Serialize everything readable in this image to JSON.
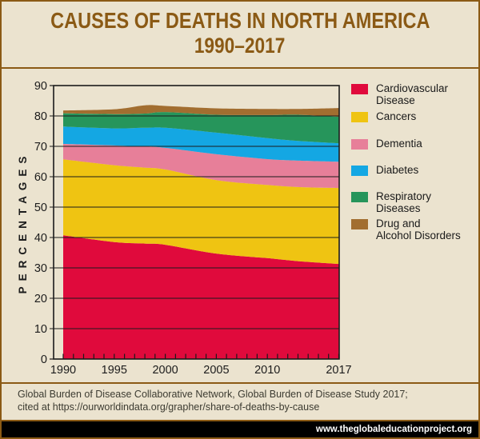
{
  "title": {
    "line1": "CAUSES OF DEATHS IN NORTH AMERICA",
    "line2": "1990–2017"
  },
  "chart_data": {
    "type": "area",
    "stacked": true,
    "title": "Causes of Deaths in North America 1990–2017",
    "x": [
      1990,
      1995,
      1998,
      2000,
      2005,
      2010,
      2013,
      2017
    ],
    "series": [
      {
        "name": "Cardiovascular Disease",
        "color": "#E00A3C",
        "values": [
          40.7,
          38.5,
          38.0,
          37.6,
          34.7,
          33.2,
          32.2,
          31.3
        ]
      },
      {
        "name": "Cancers",
        "color": "#EFC412",
        "values": [
          25.0,
          25.3,
          25.0,
          24.8,
          24.2,
          24.1,
          24.4,
          25.0
        ]
      },
      {
        "name": "Dementia",
        "color": "#E77F99",
        "values": [
          5.1,
          6.5,
          6.9,
          7.1,
          8.5,
          8.5,
          8.7,
          8.6
        ]
      },
      {
        "name": "Diabetes",
        "color": "#14A7E3",
        "values": [
          5.7,
          5.6,
          6.2,
          6.6,
          7.1,
          6.9,
          6.5,
          6.1
        ]
      },
      {
        "name": "Respiratory Diseases",
        "color": "#26955B",
        "values": [
          4.4,
          4.7,
          4.7,
          5.2,
          5.9,
          7.6,
          8.6,
          8.7
        ]
      },
      {
        "name": "Drug and Alcohol Disorders",
        "color": "#A26E30",
        "values": [
          0.9,
          1.6,
          2.7,
          2.0,
          2.1,
          2.0,
          1.9,
          2.9
        ]
      }
    ],
    "xlabel": "",
    "ylabel": "PERCENTAGES",
    "xlim": [
      1990,
      2017
    ],
    "ylim": [
      0,
      90
    ],
    "yticks": [
      0,
      10,
      20,
      30,
      40,
      50,
      60,
      70,
      80,
      90
    ],
    "xtick_labels": [
      1990,
      1995,
      2000,
      2005,
      2010,
      2017
    ],
    "minor_xticks_every_year": true,
    "grid": true,
    "legend_position": "right"
  },
  "legend": {
    "items": [
      {
        "label_lines": [
          "Cardiovascular",
          "Disease"
        ]
      },
      {
        "label_lines": [
          "Cancers"
        ]
      },
      {
        "label_lines": [
          "Dementia"
        ]
      },
      {
        "label_lines": [
          "Diabetes"
        ]
      },
      {
        "label_lines": [
          "Respiratory",
          "Diseases"
        ]
      },
      {
        "label_lines": [
          "Drug and",
          "Alcohol Disorders"
        ]
      }
    ]
  },
  "footer": {
    "line1": "Global Burden of Disease Collaborative Network, Global Burden of Disease Study 2017;",
    "line2": "cited at https://ourworldindata.org/grapher/share-of-deaths-by-cause"
  },
  "bottom_bar": {
    "url": "www.theglobaleducationproject.org"
  },
  "colors": {
    "background": "#EBE3CF",
    "frame": "#8B5A15",
    "title_text": "#8B5A15",
    "axis_text": "#1C1C1C",
    "gridline": "#1B1B1B",
    "footer_text": "#3C3B31",
    "bar_background": "#000000",
    "bar_text": "#FFFFFF"
  }
}
